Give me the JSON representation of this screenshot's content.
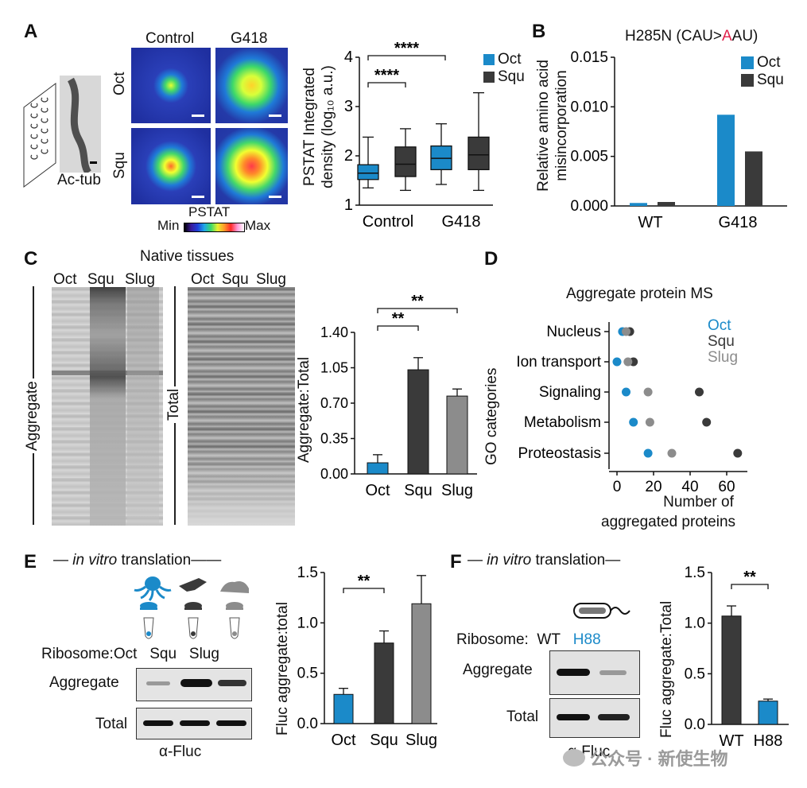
{
  "panels": {
    "A": {
      "label": "A",
      "illustration_label": "Ac-tub",
      "col_labels": [
        "Control",
        "G418"
      ],
      "row_labels": [
        "Oct",
        "Squ"
      ],
      "colorbar": {
        "title": "PSTAT",
        "min": "Min",
        "max": "Max"
      },
      "chart_data": {
        "type": "box",
        "ylabel": "PSTAT Integrated density (log₁₀ a.u.)",
        "ylabel_line1": "PSTAT Integrated",
        "ylabel_line2": "density (log₁₀ a.u.)",
        "ylim": [
          1,
          4
        ],
        "yticks": [
          "1",
          "2",
          "3",
          "4"
        ],
        "categories": [
          "Control",
          "G418"
        ],
        "series": [
          {
            "name": "Oct",
            "color": "#1b8ac9",
            "boxes": [
              {
                "group": "Control",
                "min": 1.35,
                "q1": 1.52,
                "median": 1.65,
                "q3": 1.82,
                "max": 2.38
              },
              {
                "group": "G418",
                "min": 1.42,
                "q1": 1.72,
                "median": 1.95,
                "q3": 2.2,
                "max": 2.65
              }
            ]
          },
          {
            "name": "Squ",
            "color": "#3a3a3a",
            "boxes": [
              {
                "group": "Control",
                "min": 1.3,
                "q1": 1.58,
                "median": 1.83,
                "q3": 2.18,
                "max": 2.55
              },
              {
                "group": "G418",
                "min": 1.3,
                "q1": 1.72,
                "median": 2.02,
                "q3": 2.38,
                "max": 3.28
              }
            ]
          }
        ],
        "annotations": [
          "****",
          "****"
        ]
      }
    },
    "B": {
      "label": "B",
      "title_prefix": "H285N (CAU>",
      "title_highlight": "A",
      "title_suffix": "AU)",
      "chart_data": {
        "type": "bar",
        "ylabel": "Relative amino acid misincorporation",
        "ylabel_line1": "Relative amino acid",
        "ylabel_line2": "misincorporation",
        "ylim": [
          0,
          0.015
        ],
        "yticks": [
          "0.000",
          "0.005",
          "0.010",
          "0.015"
        ],
        "categories": [
          "WT",
          "G418"
        ],
        "series": [
          {
            "name": "Oct",
            "color": "#1b8ac9",
            "values": [
              0.0003,
              0.0092
            ]
          },
          {
            "name": "Squ",
            "color": "#3a3a3a",
            "values": [
              0.0004,
              0.0055
            ]
          }
        ]
      }
    },
    "C": {
      "label": "C",
      "gel_title": "Native tissues",
      "lanes": [
        "Oct",
        "Squ",
        "Slug"
      ],
      "side_labels": [
        "Aggregate",
        "Total"
      ],
      "chart_data": {
        "type": "bar",
        "ylabel": "Aggregate:Total",
        "ylim": [
          0,
          1.4
        ],
        "yticks": [
          "0.00",
          "0.35",
          "0.70",
          "1.05",
          "1.40"
        ],
        "categories": [
          "Oct",
          "Squ",
          "Slug"
        ],
        "values": [
          0.11,
          1.03,
          0.77
        ],
        "errors": [
          0.08,
          0.12,
          0.07
        ],
        "colors": [
          "#1b8ac9",
          "#3a3a3a",
          "#8c8c8c"
        ],
        "annotations": [
          "**",
          "**"
        ]
      }
    },
    "D": {
      "label": "D",
      "title": "Aggregate protein MS",
      "chart_data": {
        "type": "scatter",
        "ylabel": "GO categories",
        "xlabel_line1": "Number of",
        "xlabel_line2": "aggregated proteins",
        "xlim": [
          0,
          65
        ],
        "xticks": [
          "0",
          "20",
          "40",
          "60"
        ],
        "categories": [
          "Nucleus",
          "Ion transport",
          "Signaling",
          "Metabolism",
          "Proteostasis"
        ],
        "series": [
          {
            "name": "Oct",
            "color": "#1b8ac9",
            "values": [
              3,
              0,
              5,
              9,
              17
            ]
          },
          {
            "name": "Squ",
            "color": "#3a3a3a",
            "values": [
              7,
              9,
              45,
              49,
              66
            ]
          },
          {
            "name": "Slug",
            "color": "#8c8c8c",
            "values": [
              5,
              6,
              17,
              18,
              30
            ]
          }
        ]
      }
    },
    "E": {
      "label": "E",
      "header_italic": "in vitro",
      "header_rest": " translation",
      "ribosome_label": "Ribosome:",
      "lanes": [
        "Oct",
        "Squ",
        "Slug"
      ],
      "blot_labels": [
        "Aggregate",
        "Total"
      ],
      "antibody": "α-Fluc",
      "chart_data": {
        "type": "bar",
        "ylabel": "Fluc aggregate:total",
        "ylim": [
          0,
          1.5
        ],
        "yticks": [
          "0.0",
          "0.5",
          "1.0",
          "1.5"
        ],
        "categories": [
          "Oct",
          "Squ",
          "Slug"
        ],
        "values": [
          0.29,
          0.8,
          1.19
        ],
        "errors": [
          0.06,
          0.12,
          0.28
        ],
        "colors": [
          "#1b8ac9",
          "#3a3a3a",
          "#8c8c8c"
        ],
        "annotations": [
          "**"
        ]
      }
    },
    "F": {
      "label": "F",
      "header_italic": "in vitro",
      "header_rest": " translation",
      "ribosome_label": "Ribosome:",
      "lanes": [
        "WT",
        "H88"
      ],
      "blot_labels": [
        "Aggregate",
        "Total"
      ],
      "antibody": "α-Fluc",
      "chart_data": {
        "type": "bar",
        "ylabel": "Fluc aggregate:Total",
        "ylim": [
          0,
          1.5
        ],
        "yticks": [
          "0.0",
          "0.5",
          "1.0",
          "1.5"
        ],
        "categories": [
          "WT",
          "H88"
        ],
        "values": [
          1.07,
          0.23
        ],
        "errors": [
          0.1,
          0.02
        ],
        "colors": [
          "#3a3a3a",
          "#1b8ac9"
        ],
        "annotations": [
          "**"
        ]
      }
    }
  },
  "watermark": "公众号 · 新使生物"
}
